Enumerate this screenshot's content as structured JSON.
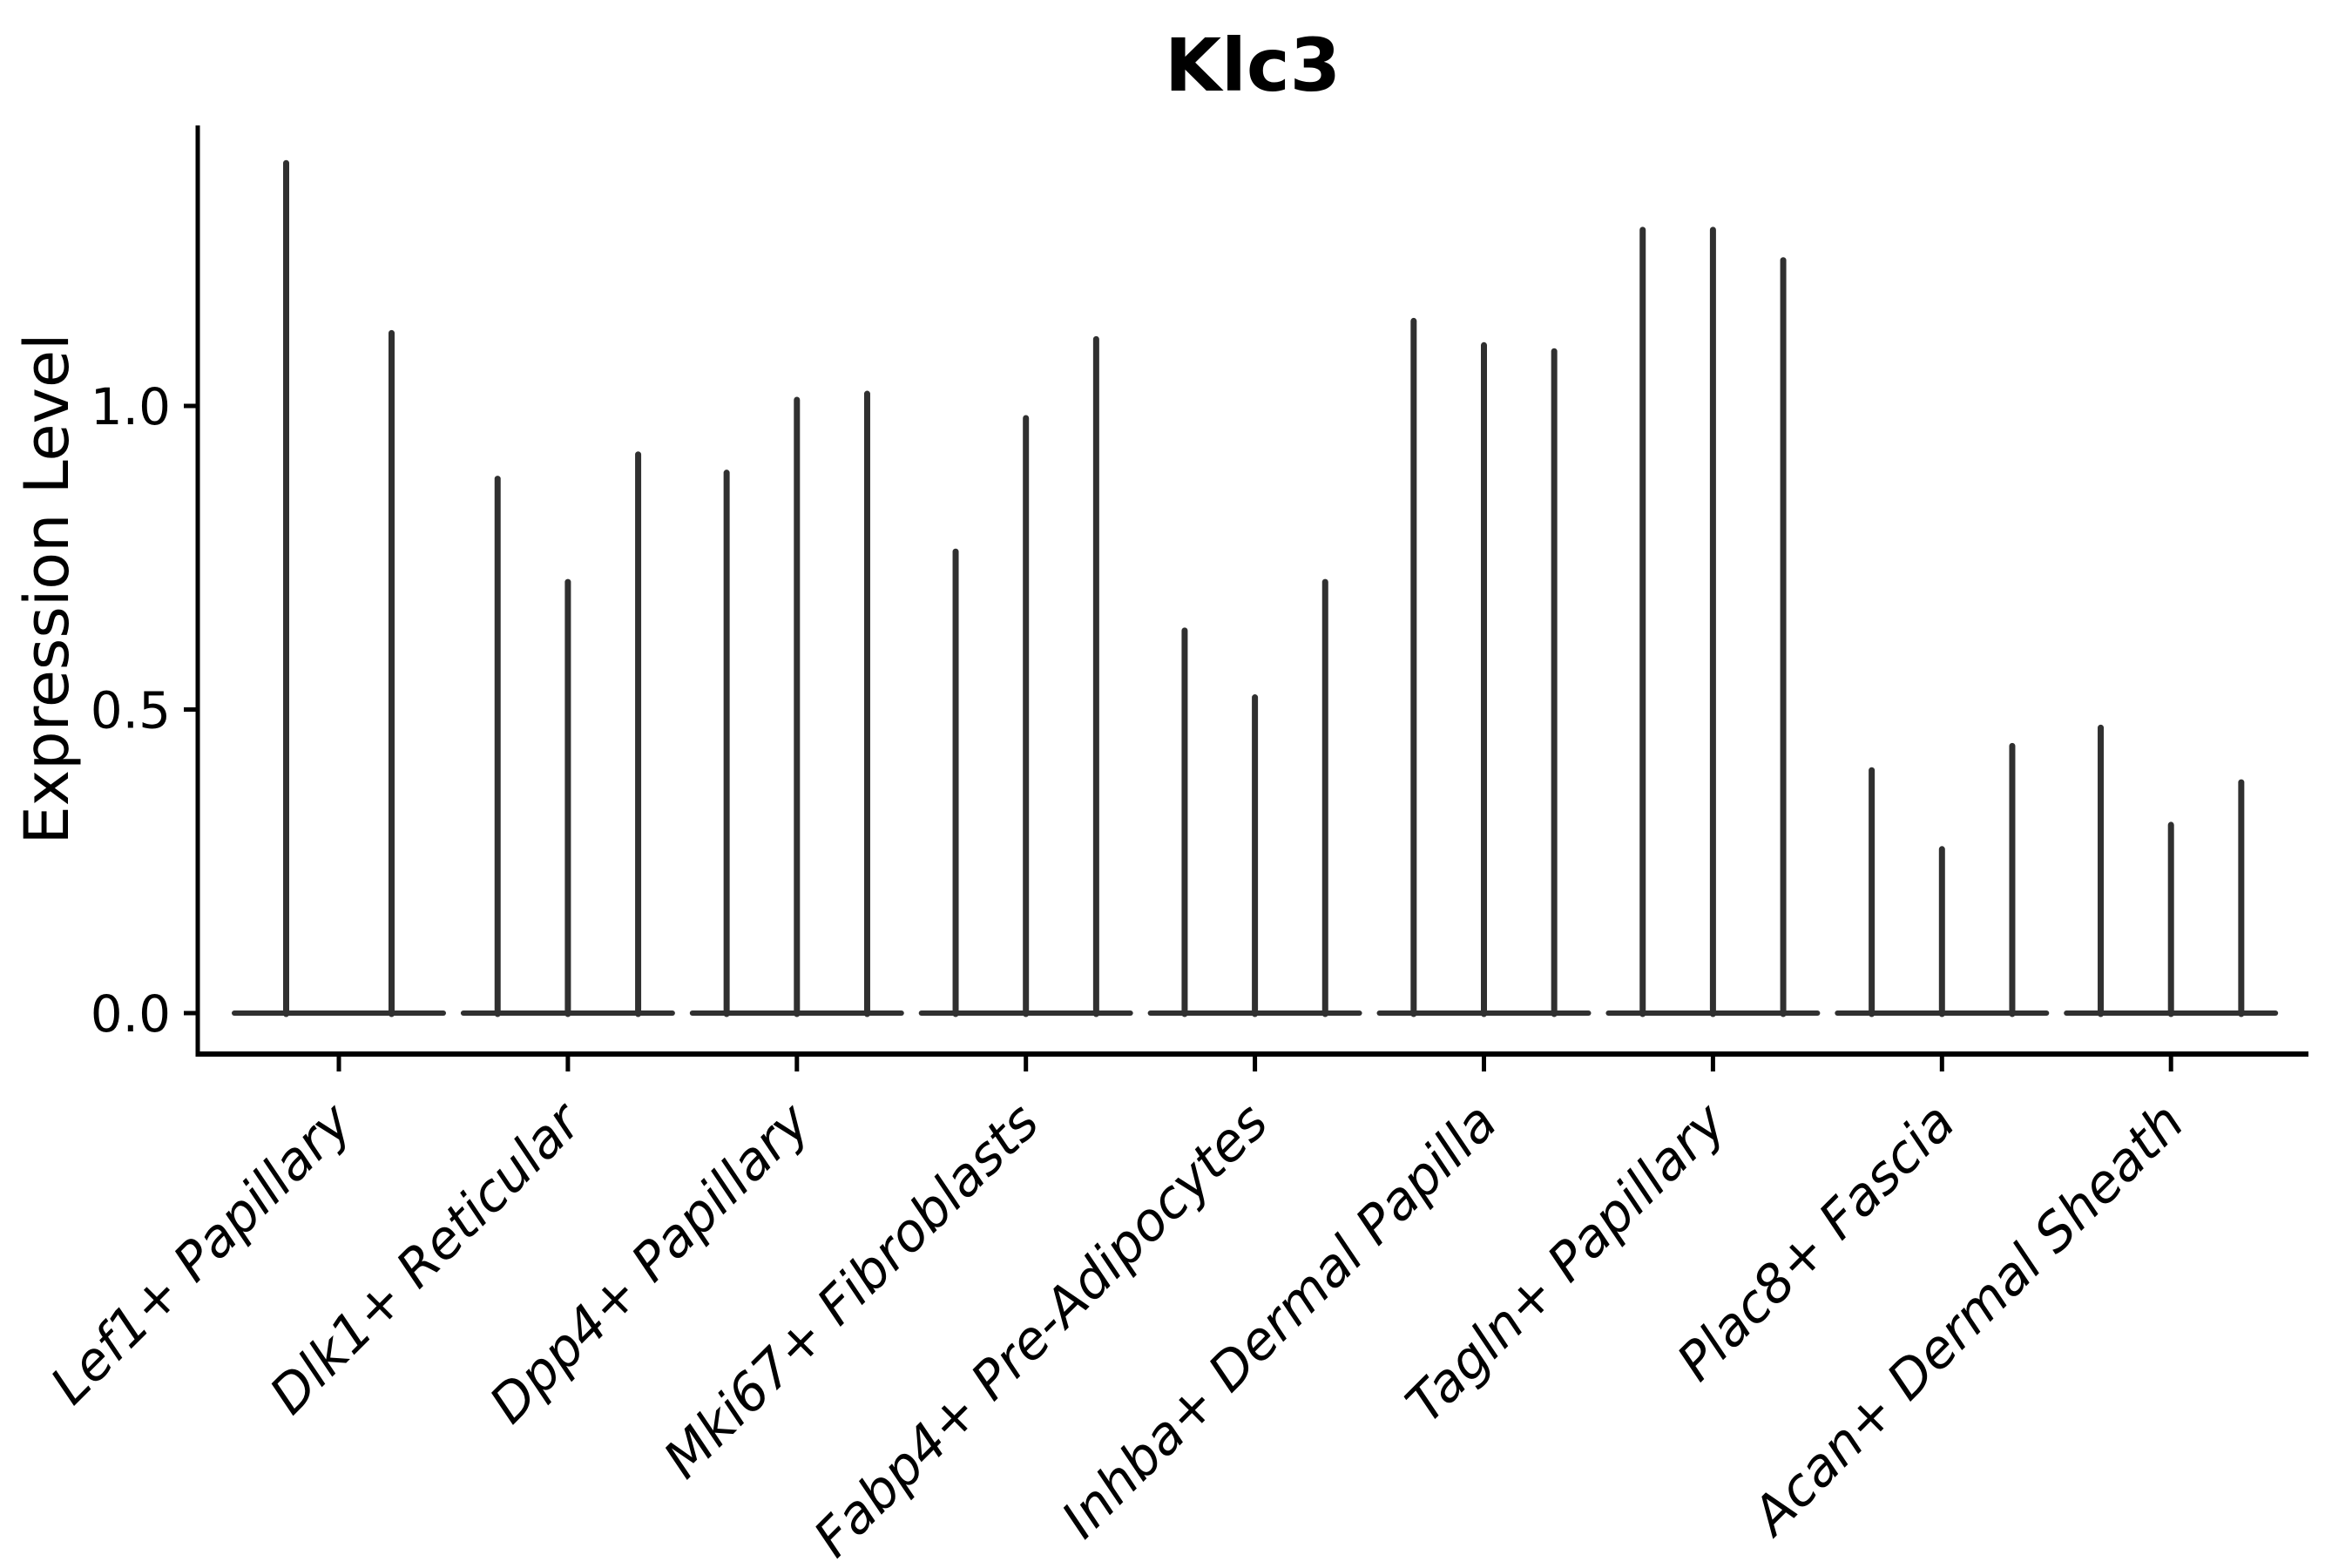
{
  "figure": {
    "title": "Klc3",
    "background_color": "#ffffff"
  },
  "colors": {
    "violin_stroke": "#303030",
    "axis": "#000000",
    "text": "#000000",
    "background": "#ffffff"
  },
  "chart_data": {
    "type": "violin",
    "title": "Klc3",
    "xlabel": "",
    "ylabel": "Expression Level",
    "ylim": [
      -0.06,
      1.46
    ],
    "yticks": [
      0.0,
      0.5,
      1.0
    ],
    "ytick_labels": [
      "0.0",
      "0.5",
      "1.0"
    ],
    "grid": false,
    "legend": null,
    "x_tick_rotation_deg": 45,
    "violin_shape_note": "each violin collapses to a flat base at expression 0 with a single thin density spike rising to its max expression value",
    "categories": [
      "Lef1+ Papillary",
      "Dlk1+ Reticular",
      "Dpp4+ Papillary",
      "Mki67+ Fibroblasts",
      "Fabp4+ Pre-Adipocytes",
      "Inhba+ Dermal Papilla",
      "Tagln+ Papillary",
      "Plac8+ Fascia",
      "Acan+ Dermal Sheath"
    ],
    "groups": [
      {
        "category": "Lef1+ Papillary",
        "violin_peaks": [
          1.4,
          1.12
        ]
      },
      {
        "category": "Dlk1+ Reticular",
        "violin_peaks": [
          0.88,
          0.71,
          0.92
        ]
      },
      {
        "category": "Dpp4+ Papillary",
        "violin_peaks": [
          0.89,
          1.01,
          1.02
        ]
      },
      {
        "category": "Mki67+ Fibroblasts",
        "violin_peaks": [
          0.76,
          0.98,
          1.11
        ]
      },
      {
        "category": "Fabp4+ Pre-Adipocytes",
        "violin_peaks": [
          0.63,
          0.52,
          0.71
        ]
      },
      {
        "category": "Inhba+ Dermal Papilla",
        "violin_peaks": [
          1.14,
          1.1,
          1.09
        ]
      },
      {
        "category": "Tagln+ Papillary",
        "violin_peaks": [
          1.29,
          1.29,
          1.24
        ]
      },
      {
        "category": "Plac8+ Fascia",
        "violin_peaks": [
          0.4,
          0.27,
          0.44
        ]
      },
      {
        "category": "Acan+ Dermal Sheath",
        "violin_peaks": [
          0.47,
          0.31,
          0.38
        ]
      }
    ]
  }
}
